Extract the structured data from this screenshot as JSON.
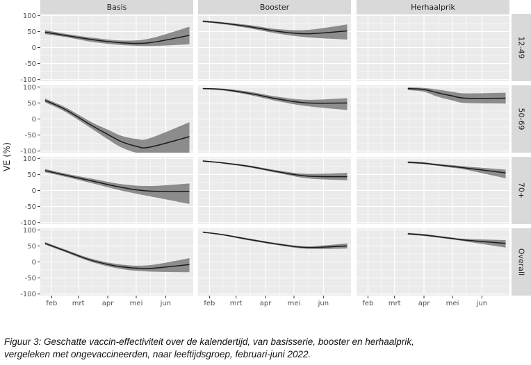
{
  "chart_data": {
    "type": "area",
    "ylabel": "VE (%)",
    "x_tick_labels": [
      "feb",
      "mrt",
      "apr",
      "mei",
      "jun"
    ],
    "x_ticks": [
      "2022-02-01",
      "2022-03-01",
      "2022-04-01",
      "2022-05-01",
      "2022-06-01"
    ],
    "xlim": [
      "2022-01-20",
      "2022-06-30"
    ],
    "ylim": [
      -105,
      105
    ],
    "y_ticks": [
      -100,
      -50,
      0,
      50,
      100
    ],
    "y_tick_labels": [
      "-100",
      "-50",
      "0",
      "50",
      "100"
    ],
    "grid": true,
    "legend": "none",
    "colors": {
      "line": "#1a1a1a",
      "ribbon": "#8c8c8c",
      "panel_bg": "#ebebeb",
      "strip_bg": "#d9d9d9"
    },
    "columns": [
      "Basis",
      "Booster",
      "Herhaalprik"
    ],
    "rows": [
      "12-49",
      "50-69",
      "70+",
      "Overall"
    ],
    "panels": [
      {
        "column": "Basis",
        "row": "12-49",
        "x": [
          "2022-01-25",
          "2022-02-15",
          "2022-03-15",
          "2022-04-15",
          "2022-05-15",
          "2022-06-26"
        ],
        "y": [
          48,
          38,
          25,
          15,
          15,
          38
        ],
        "y_low": [
          42,
          33,
          18,
          8,
          5,
          10
        ],
        "y_high": [
          54,
          43,
          31,
          22,
          28,
          65
        ]
      },
      {
        "column": "Booster",
        "row": "12-49",
        "x": [
          "2022-01-25",
          "2022-02-15",
          "2022-03-15",
          "2022-04-15",
          "2022-05-15",
          "2022-06-26"
        ],
        "y": [
          82,
          76,
          65,
          50,
          43,
          52
        ],
        "y_low": [
          79,
          73,
          60,
          43,
          32,
          25
        ],
        "y_high": [
          85,
          79,
          70,
          57,
          55,
          72
        ]
      },
      {
        "column": "Basis",
        "row": "50-69",
        "x": [
          "2022-01-25",
          "2022-02-15",
          "2022-03-15",
          "2022-04-01",
          "2022-04-15",
          "2022-05-01",
          "2022-05-15",
          "2022-06-26"
        ],
        "y": [
          58,
          30,
          -20,
          -48,
          -70,
          -85,
          -88,
          -55
        ],
        "y_low": [
          52,
          23,
          -30,
          -63,
          -88,
          -105,
          -105,
          -105
        ],
        "y_high": [
          64,
          37,
          -10,
          -33,
          -52,
          -62,
          -60,
          -10
        ]
      },
      {
        "column": "Booster",
        "row": "50-69",
        "x": [
          "2022-01-25",
          "2022-02-15",
          "2022-03-15",
          "2022-04-15",
          "2022-05-15",
          "2022-06-26"
        ],
        "y": [
          95,
          92,
          80,
          62,
          50,
          50
        ],
        "y_low": [
          93,
          89,
          75,
          55,
          40,
          28
        ],
        "y_high": [
          97,
          95,
          85,
          69,
          60,
          65
        ]
      },
      {
        "column": "Herhaalprik",
        "row": "50-69",
        "x": [
          "2022-03-15",
          "2022-04-01",
          "2022-04-15",
          "2022-05-01",
          "2022-05-15",
          "2022-06-26"
        ],
        "y": [
          95,
          92,
          82,
          72,
          65,
          65
        ],
        "y_low": [
          90,
          85,
          70,
          58,
          50,
          48
        ],
        "y_high": [
          99,
          97,
          92,
          85,
          80,
          82
        ]
      },
      {
        "column": "Basis",
        "row": "70+",
        "x": [
          "2022-01-25",
          "2022-02-15",
          "2022-03-15",
          "2022-04-15",
          "2022-05-15",
          "2022-06-26"
        ],
        "y": [
          62,
          48,
          30,
          10,
          -2,
          -3
        ],
        "y_low": [
          57,
          43,
          23,
          0,
          -18,
          -42
        ],
        "y_high": [
          67,
          53,
          37,
          20,
          14,
          22
        ]
      },
      {
        "column": "Booster",
        "row": "70+",
        "x": [
          "2022-01-25",
          "2022-02-15",
          "2022-03-15",
          "2022-04-15",
          "2022-05-15",
          "2022-06-26"
        ],
        "y": [
          92,
          86,
          75,
          58,
          45,
          43
        ],
        "y_low": [
          90,
          84,
          72,
          54,
          38,
          32
        ],
        "y_high": [
          94,
          88,
          78,
          62,
          52,
          55
        ]
      },
      {
        "column": "Herhaalprik",
        "row": "70+",
        "x": [
          "2022-03-15",
          "2022-04-01",
          "2022-04-15",
          "2022-05-01",
          "2022-05-15",
          "2022-06-26"
        ],
        "y": [
          88,
          85,
          80,
          75,
          70,
          55
        ],
        "y_low": [
          85,
          82,
          77,
          71,
          65,
          38
        ],
        "y_high": [
          91,
          88,
          83,
          79,
          75,
          65
        ]
      },
      {
        "column": "Basis",
        "row": "Overall",
        "x": [
          "2022-01-25",
          "2022-02-15",
          "2022-03-15",
          "2022-04-15",
          "2022-05-15",
          "2022-06-26"
        ],
        "y": [
          58,
          35,
          5,
          -15,
          -20,
          -8
        ],
        "y_low": [
          54,
          31,
          0,
          -22,
          -30,
          -32
        ],
        "y_high": [
          62,
          39,
          10,
          -8,
          -10,
          12
        ]
      },
      {
        "column": "Booster",
        "row": "Overall",
        "x": [
          "2022-01-25",
          "2022-02-15",
          "2022-03-15",
          "2022-04-15",
          "2022-05-15",
          "2022-06-26"
        ],
        "y": [
          93,
          85,
          70,
          55,
          45,
          50
        ],
        "y_low": [
          91,
          83,
          67,
          52,
          41,
          42
        ],
        "y_high": [
          95,
          87,
          73,
          58,
          49,
          58
        ]
      },
      {
        "column": "Herhaalprik",
        "row": "Overall",
        "x": [
          "2022-03-15",
          "2022-04-01",
          "2022-04-15",
          "2022-05-01",
          "2022-05-15",
          "2022-06-26"
        ],
        "y": [
          88,
          84,
          79,
          73,
          68,
          58
        ],
        "y_low": [
          85,
          81,
          76,
          70,
          64,
          45
        ],
        "y_high": [
          91,
          87,
          82,
          76,
          72,
          68
        ]
      }
    ]
  },
  "caption_line1": "Figuur 3: Geschatte vaccin-effectiviteit over de kalendertijd, van basisserie, booster en herhaalprik,",
  "caption_line2": "vergeleken met ongevaccineerden, naar leeftijdsgroep, februari-juni 2022."
}
